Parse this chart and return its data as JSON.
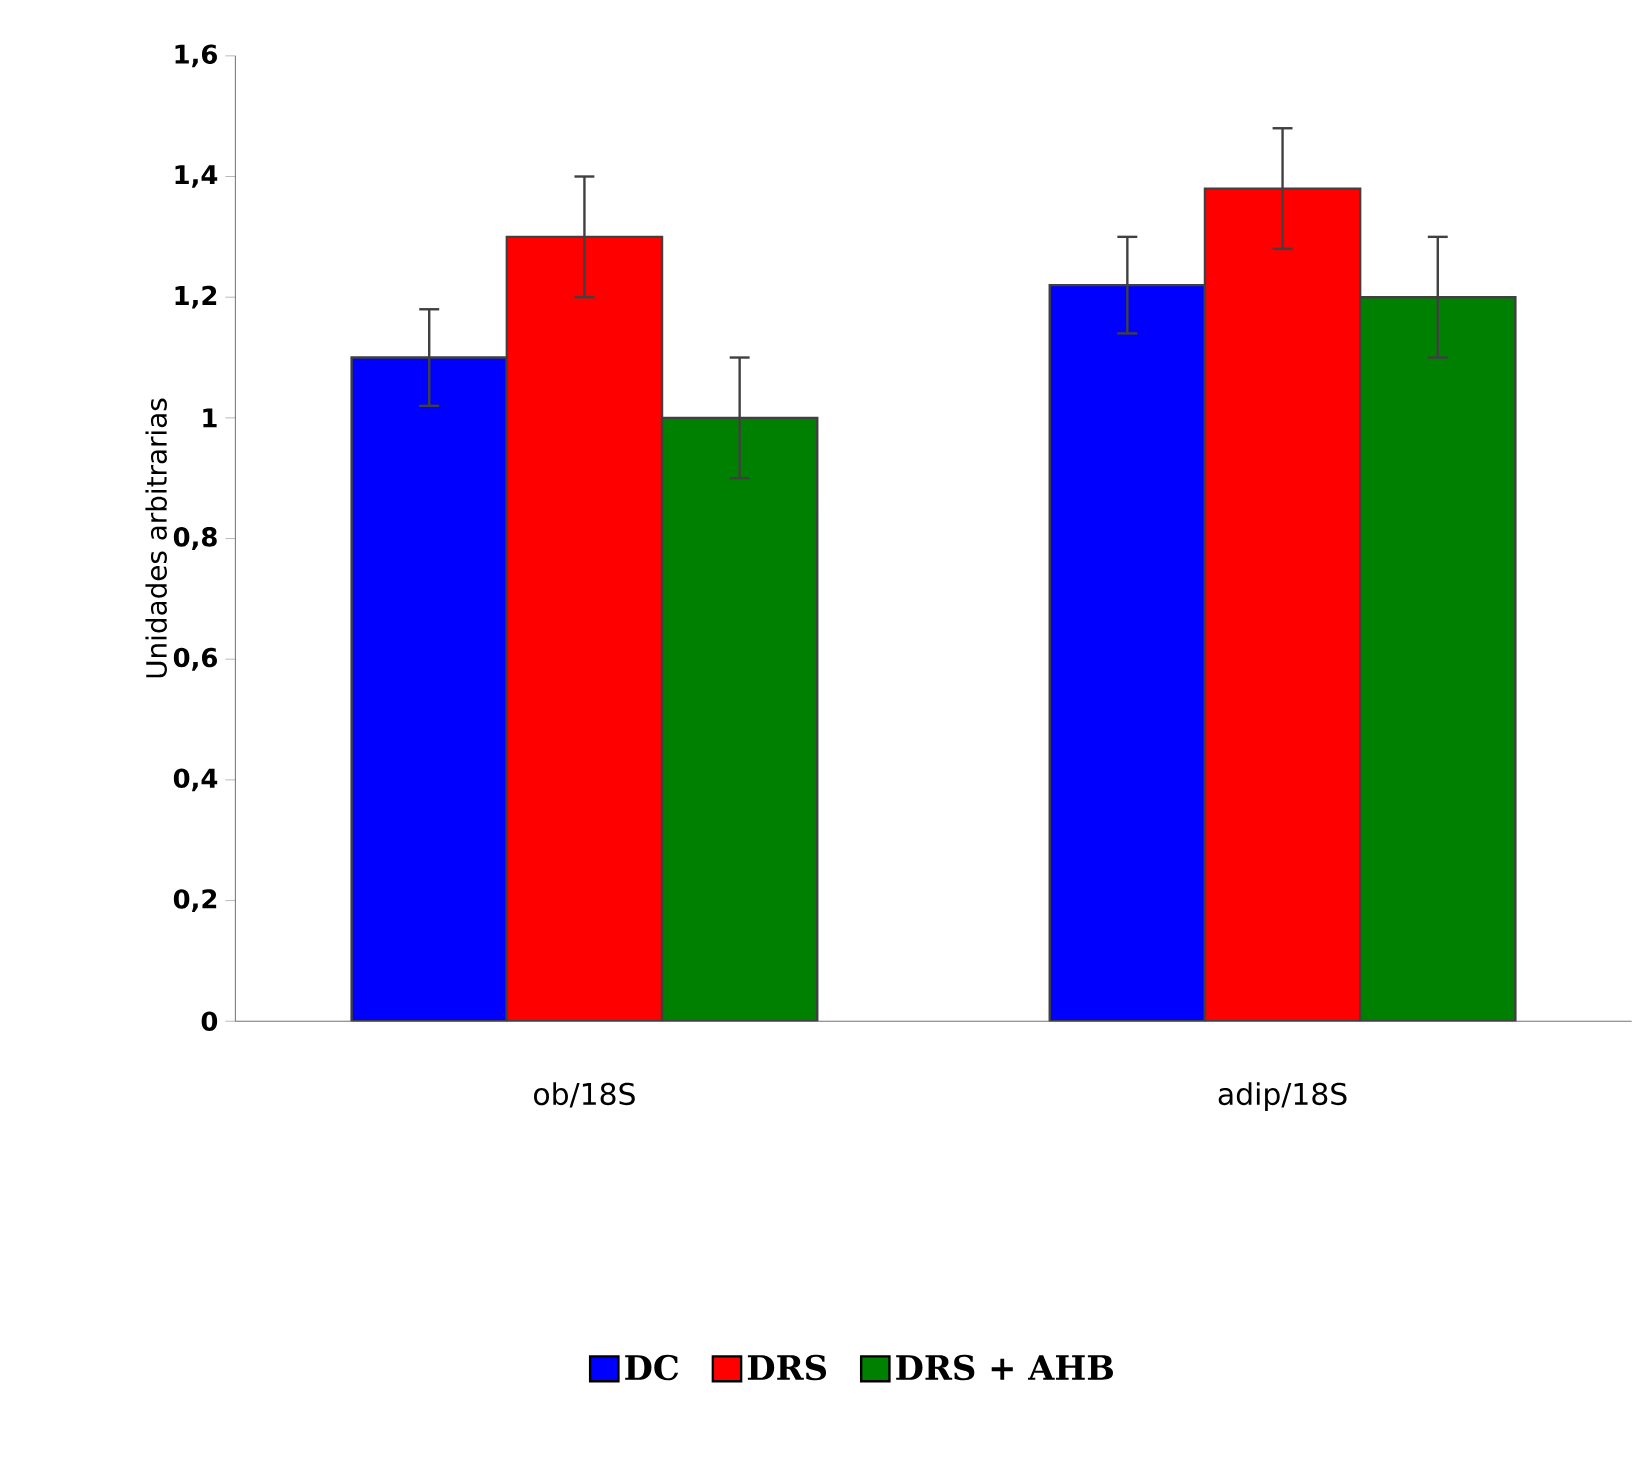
{
  "chart_data": {
    "type": "bar",
    "ylabel": "Unidades arbitrarias",
    "categories": [
      "ob/18S",
      "adip/18S"
    ],
    "series": [
      {
        "name": "DC",
        "color": "#0000ff",
        "values": [
          1.1,
          1.22
        ],
        "errors": [
          0.08,
          0.08
        ]
      },
      {
        "name": "DRS",
        "color": "#ff0000",
        "values": [
          1.3,
          1.38
        ],
        "errors": [
          0.1,
          0.1
        ]
      },
      {
        "name": "DRS + AHB",
        "color": "#008000",
        "values": [
          1.0,
          1.2
        ],
        "errors": [
          0.1,
          0.1
        ]
      }
    ],
    "ylim": [
      0,
      1.6
    ],
    "yticks": [
      0,
      {
        "value": 0.2,
        "label": "0,2"
      },
      {
        "value": 0.4,
        "label": "0,4"
      },
      {
        "value": 0.6,
        "label": "0,6"
      },
      {
        "value": 0.8,
        "label": "0,8"
      },
      1,
      {
        "value": 1.2,
        "label": "1,2"
      },
      {
        "value": 1.4,
        "label": "1,4"
      },
      {
        "value": 1.6,
        "label": "1,6"
      }
    ],
    "grid": false,
    "legend": "bottom"
  }
}
